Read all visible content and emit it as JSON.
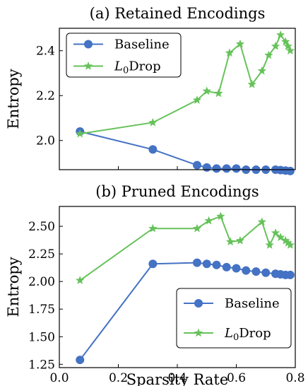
{
  "chart_data": [
    {
      "type": "line",
      "title": "(a) Retained Encodings",
      "xlabel": "",
      "ylabel": "Entropy",
      "xlim": [
        0.0,
        0.8
      ],
      "ylim": [
        1.87,
        2.5
      ],
      "yticks": [
        2.0,
        2.2,
        2.4
      ],
      "ytick_labels": [
        "2.0",
        "2.2",
        "2.4"
      ],
      "xticks": [
        0.0,
        0.2,
        0.4,
        0.6,
        0.8
      ],
      "xtick_labels": [],
      "legend": "top-left",
      "series": [
        {
          "name": "Baseline",
          "color": "#4472C4",
          "marker": "circle",
          "x": [
            0.07,
            0.317,
            0.467,
            0.5,
            0.533,
            0.567,
            0.6,
            0.633,
            0.667,
            0.7,
            0.733,
            0.75,
            0.767,
            0.783
          ],
          "y": [
            2.04,
            1.96,
            1.89,
            1.88,
            1.875,
            1.875,
            1.875,
            1.87,
            1.87,
            1.87,
            1.87,
            1.868,
            1.866,
            1.864
          ]
        },
        {
          "name": "L0Drop",
          "color": "#66C25A",
          "marker": "star",
          "x": [
            0.07,
            0.317,
            0.467,
            0.5,
            0.54,
            0.577,
            0.613,
            0.653,
            0.687,
            0.71,
            0.733,
            0.75,
            0.767,
            0.775,
            0.783
          ],
          "y": [
            2.03,
            2.08,
            2.18,
            2.22,
            2.21,
            2.39,
            2.43,
            2.25,
            2.31,
            2.38,
            2.42,
            2.47,
            2.44,
            2.42,
            2.4
          ]
        }
      ]
    },
    {
      "type": "line",
      "title": "(b) Pruned Encodings",
      "xlabel": "Sparsity Rate",
      "ylabel": "Entropy",
      "xlim": [
        0.0,
        0.8
      ],
      "ylim": [
        1.22,
        2.68
      ],
      "yticks": [
        1.25,
        1.5,
        1.75,
        2.0,
        2.25,
        2.5
      ],
      "ytick_labels": [
        "1.25",
        "1.50",
        "1.75",
        "2.00",
        "2.25",
        "2.50"
      ],
      "xticks": [
        0.0,
        0.2,
        0.4,
        0.6,
        0.8
      ],
      "xtick_labels": [
        "0.0",
        "0.2",
        "0.4",
        "0.6",
        "0.8"
      ],
      "legend": "bottom-right",
      "series": [
        {
          "name": "Baseline",
          "color": "#4472C4",
          "marker": "circle",
          "x": [
            0.07,
            0.317,
            0.467,
            0.5,
            0.533,
            0.567,
            0.6,
            0.633,
            0.667,
            0.7,
            0.733,
            0.75,
            0.767,
            0.783
          ],
          "y": [
            1.29,
            2.16,
            2.17,
            2.16,
            2.15,
            2.13,
            2.12,
            2.1,
            2.09,
            2.08,
            2.07,
            2.065,
            2.06,
            2.06
          ]
        },
        {
          "name": "L0Drop",
          "color": "#66C25A",
          "marker": "star",
          "x": [
            0.07,
            0.317,
            0.467,
            0.507,
            0.547,
            0.58,
            0.613,
            0.687,
            0.713,
            0.733,
            0.75,
            0.767,
            0.775,
            0.783
          ],
          "y": [
            2.01,
            2.48,
            2.48,
            2.55,
            2.59,
            2.36,
            2.37,
            2.54,
            2.33,
            2.44,
            2.4,
            2.37,
            2.35,
            2.33
          ]
        }
      ]
    }
  ]
}
